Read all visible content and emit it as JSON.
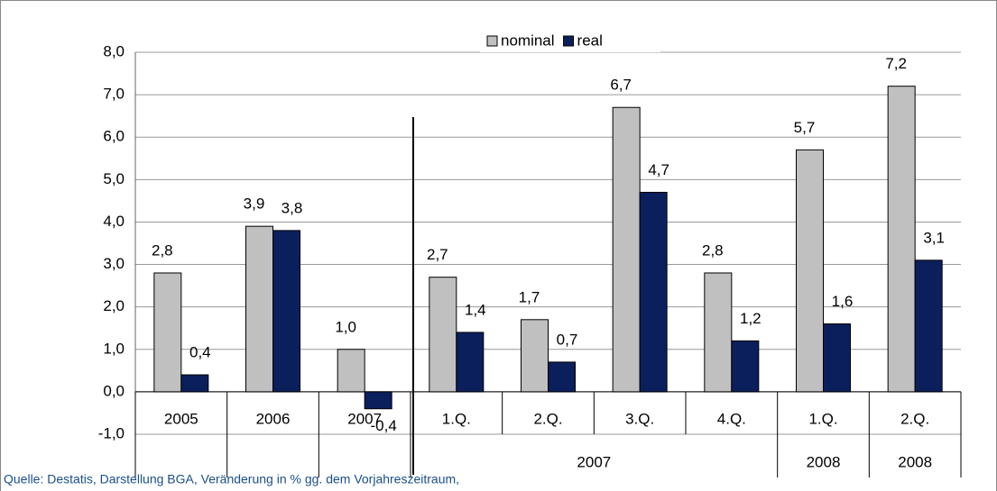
{
  "chart_data": {
    "type": "bar",
    "categories": [
      "2005",
      "2006",
      "2007",
      "1.Q.",
      "2.Q.",
      "3.Q.",
      "4.Q.",
      "1.Q.",
      "2.Q."
    ],
    "groups": [
      {
        "label": null,
        "span": 1
      },
      {
        "label": null,
        "span": 1
      },
      {
        "label": null,
        "span": 1
      },
      {
        "label": "2007",
        "span": 4
      },
      {
        "label": "2008",
        "span": 1
      },
      {
        "label": "2008",
        "span": 1
      }
    ],
    "series": [
      {
        "name": "nominal",
        "color": "#c0c0c0",
        "values": [
          2.8,
          3.9,
          1.0,
          2.7,
          1.7,
          6.7,
          2.8,
          5.7,
          7.2
        ],
        "value_labels": [
          "2,8",
          "3,9",
          "1,0",
          "2,7",
          "1,7",
          "6,7",
          "2,8",
          "5,7",
          "7,2"
        ]
      },
      {
        "name": "real",
        "color": "#0b1f5c",
        "values": [
          0.4,
          3.8,
          -0.4,
          1.4,
          0.7,
          4.7,
          1.2,
          1.6,
          3.1
        ],
        "value_labels": [
          "0,4",
          "3,8",
          "-0,4",
          "1,4",
          "0,7",
          "4,7",
          "1,2",
          "1,6",
          "3,1"
        ]
      }
    ],
    "ylim": [
      -1,
      8
    ],
    "yticks": [
      {
        "value": -1,
        "label": "-1,0"
      },
      {
        "value": 0,
        "label": "0,0"
      },
      {
        "value": 1,
        "label": "1,0"
      },
      {
        "value": 2,
        "label": "2,0"
      },
      {
        "value": 3,
        "label": "3,0"
      },
      {
        "value": 4,
        "label": "4,0"
      },
      {
        "value": 5,
        "label": "5,0"
      },
      {
        "value": 6,
        "label": "6,0"
      },
      {
        "value": 7,
        "label": "7,0"
      },
      {
        "value": 8,
        "label": "8,0"
      }
    ],
    "grid": true,
    "legend": "top",
    "source": "Quelle: Destatis, Darstellung BGA, Veränderung in % gg. dem Vorjahreszeitraum,"
  }
}
